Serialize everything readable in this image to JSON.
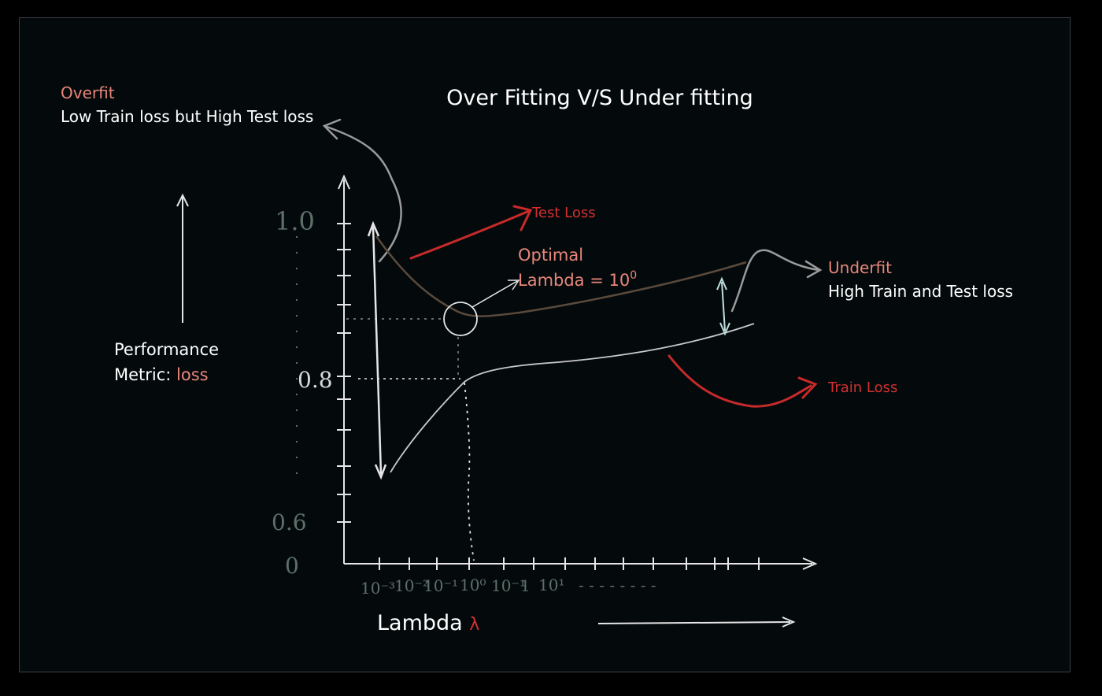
{
  "title": "Over Fitting  V/S Under fitting",
  "overfit": {
    "heading": "Overfit",
    "description": "Low Train loss but High Test loss"
  },
  "underfit": {
    "heading": "Underfit",
    "description": "High Train and Test loss"
  },
  "optimal": {
    "line1": "Optimal",
    "line2_prefix": "Lambda = 10",
    "line2_superscript": "0"
  },
  "labels": {
    "test_loss": "Test Loss",
    "train_loss": "Train Loss",
    "performance_line1": "Performance",
    "performance_line2_prefix": "Metric: ",
    "performance_line2_highlight": "loss",
    "lambda_prefix": "Lambda ",
    "lambda_symbol": "λ"
  },
  "y_ticks_handwritten": [
    "1.0",
    "0.8",
    "0.6",
    "0"
  ],
  "x_ticks_handwritten": [
    "10⁻³",
    "10⁻²",
    "10⁻¹",
    "10⁰",
    "10⁻¹",
    "1",
    "10¹"
  ],
  "x_ticks_ellipsis": "- - - - - - - -",
  "colors": {
    "background": "#040a0c",
    "white_text": "#ffffff",
    "accent_salmon": "#e8867a",
    "red_label": "#d0302f",
    "red_arrow": "#c82a2a",
    "test_curve": "#5a4a3c",
    "train_curve": "#c9c9c9",
    "handwritten_green": "#5d7068",
    "axis": "#e6e6e6"
  }
}
